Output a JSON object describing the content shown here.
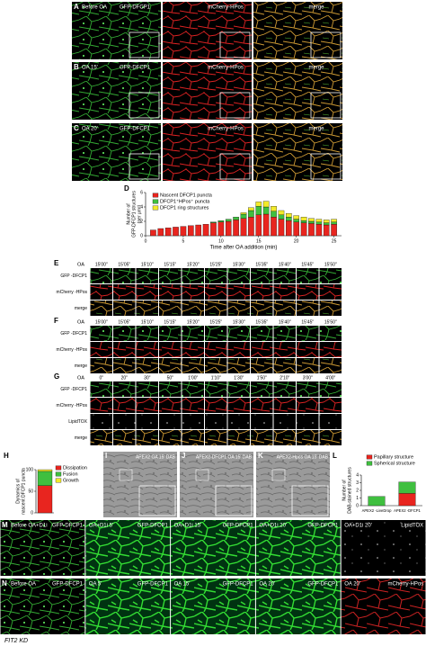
{
  "rows_abc": [
    {
      "letter": "A",
      "condition": "Before OA"
    },
    {
      "letter": "B",
      "condition": "OA 15'"
    },
    {
      "letter": "C",
      "condition": "OA 20'"
    }
  ],
  "channels_abc": [
    "GFP-DFCP1",
    "mCherry-HPos",
    "merge"
  ],
  "timelapse": [
    {
      "letter": "E",
      "prefix": "OA",
      "times": [
        "15'00\"",
        "15'05\"",
        "15'10\"",
        "15'15\"",
        "15'20\"",
        "15'25\"",
        "15'30\"",
        "15'35\"",
        "15'40\"",
        "15'45\"",
        "15'50\""
      ],
      "rows": [
        "GFP -DFCP1",
        "mCherry -HPos",
        "merge"
      ]
    },
    {
      "letter": "F",
      "prefix": "OA",
      "times": [
        "15'00\"",
        "15'05\"",
        "15'10\"",
        "15'15\"",
        "15'20\"",
        "15'25\"",
        "15'30\"",
        "15'35\"",
        "15'40\"",
        "15'45\"",
        "15'50\""
      ],
      "rows": [
        "GFP -DFCP1",
        "mCherry -HPos",
        "merge"
      ]
    },
    {
      "letter": "G",
      "prefix": "OA",
      "times": [
        "0\"",
        "20\"",
        "30\"",
        "50\"",
        "1'00\"",
        "1'10\"",
        "1'30\"",
        "1'50\"",
        "2'10\"",
        "3'00\"",
        "4'00\""
      ],
      "rows": [
        "GFP -DFCP1",
        "mCherry -HPos",
        "LipidTOX",
        "merge"
      ]
    }
  ],
  "em": [
    {
      "letter": "I",
      "label": "APEX2 OA 15' DAB"
    },
    {
      "letter": "J",
      "label": "APEX2-DFCP1 OA 15' DAB"
    },
    {
      "letter": "K",
      "label": "APEX2-Hpos OA 15' DAB"
    }
  ],
  "bottom": [
    {
      "letter": "M",
      "panels": [
        {
          "condition": "Before OA+D1i",
          "channel": "GFP-DFCP1"
        },
        {
          "condition": "OA+D1i 5'",
          "channel": "GFP-DFCP1"
        },
        {
          "condition": "OA+D1i 15'",
          "channel": "GFP-DFCP1"
        },
        {
          "condition": "OA+D1i 20'",
          "channel": "GFP-DFCP1"
        },
        {
          "condition": "OA+D1i 20'",
          "channel": "LipidTOX"
        }
      ]
    },
    {
      "letter": "N",
      "panels": [
        {
          "condition": "Before OA",
          "channel": "GFP-DFCP1"
        },
        {
          "condition": "OA 5'",
          "channel": "GFP-DFCP1"
        },
        {
          "condition": "OA 15'",
          "channel": "GFP-DFCP1"
        },
        {
          "condition": "OA 20'",
          "channel": "GFP-DFCP1"
        },
        {
          "condition": "OA 20'",
          "channel": "mCherry-HPos"
        }
      ]
    }
  ],
  "footnote": "FIT2 KD",
  "chart_data": [
    {
      "type": "bar",
      "panel": "D",
      "stacked": true,
      "xlabel": "Time after OA addition (min)",
      "ylabel": [
        "Number of",
        "GFP-DFCP1 structures",
        "(per μm²)"
      ],
      "x": [
        1,
        2,
        3,
        4,
        5,
        6,
        7,
        8,
        9,
        10,
        11,
        12,
        13,
        14,
        15,
        16,
        17,
        18,
        19,
        20,
        21,
        22,
        23,
        24,
        25
      ],
      "xlim": [
        0,
        26
      ],
      "xticks": [
        0,
        5,
        10,
        15,
        20,
        25
      ],
      "ylim": [
        0,
        6
      ],
      "yticks": [
        0,
        2,
        4,
        6
      ],
      "series": [
        {
          "name": "Nascent DFCP1 puncta",
          "color": "#e8251f",
          "values": [
            0.8,
            1.0,
            1.1,
            1.2,
            1.3,
            1.4,
            1.5,
            1.6,
            1.8,
            1.9,
            2.0,
            2.2,
            2.4,
            2.6,
            2.9,
            3.0,
            2.6,
            2.3,
            2.1,
            1.9,
            1.8,
            1.7,
            1.6,
            1.5,
            1.6
          ]
        },
        {
          "name": "DFCP1⁺HPos⁺ puncta",
          "color": "#3fbf3f",
          "values": [
            0,
            0,
            0,
            0,
            0,
            0,
            0,
            0,
            0.1,
            0.2,
            0.3,
            0.4,
            0.6,
            0.9,
            1.2,
            1.0,
            0.8,
            0.6,
            0.5,
            0.4,
            0.3,
            0.3,
            0.3,
            0.3,
            0.3
          ]
        },
        {
          "name": "DFCP1 ring structures",
          "color": "#f2ea2a",
          "values": [
            0,
            0,
            0,
            0,
            0,
            0,
            0,
            0,
            0,
            0,
            0,
            0,
            0.2,
            0.4,
            0.6,
            0.8,
            0.7,
            0.6,
            0.5,
            0.5,
            0.5,
            0.4,
            0.4,
            0.4,
            0.4
          ]
        }
      ]
    },
    {
      "type": "bar",
      "panel": "H",
      "stacked": true,
      "ylabel": [
        "Dynamics of",
        "nascent DFCP1 puncta"
      ],
      "categories": [
        null
      ],
      "ylim": [
        0,
        100
      ],
      "yticks": [
        0,
        50,
        100
      ],
      "series": [
        {
          "name": "Dissipation",
          "color": "#e8251f",
          "values": [
            63
          ]
        },
        {
          "name": "Fusion",
          "color": "#3fbf3f",
          "values": [
            33
          ]
        },
        {
          "name": "Growth",
          "color": "#f2ea2a",
          "values": [
            4
          ]
        }
      ]
    },
    {
      "type": "bar",
      "panel": "L",
      "stacked": true,
      "ylabel": [
        "Number of",
        "DAB-stained structures"
      ],
      "categories": [
        "APEX2 -LiveDrop",
        "APEX2 -DFCP1"
      ],
      "ylim": [
        0,
        4
      ],
      "yticks": [
        0,
        1,
        2,
        3,
        4
      ],
      "series": [
        {
          "name": "Papillary structure",
          "color": "#e8251f",
          "values": [
            0,
            1.6
          ]
        },
        {
          "name": "Spherical structure",
          "color": "#3fbf3f",
          "values": [
            1.2,
            1.5
          ]
        }
      ]
    }
  ]
}
